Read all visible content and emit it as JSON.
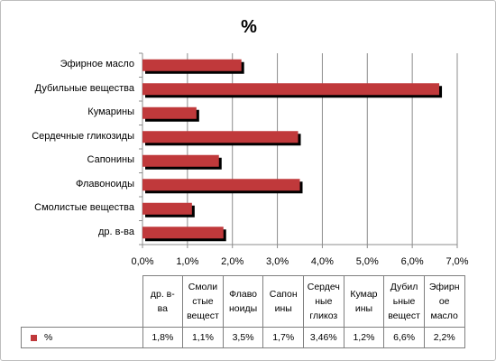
{
  "chart_data": {
    "type": "bar",
    "orientation": "horizontal",
    "title": "%",
    "categories": [
      "Эфирное масло",
      "Дубильные вещества",
      "Кумарины",
      "Сердечные гликозиды",
      "Сапонины",
      "Флавоноиды",
      "Смолистые вещества",
      "др. в-ва"
    ],
    "series": [
      {
        "name": "%",
        "values": [
          2.2,
          6.6,
          1.2,
          3.46,
          1.7,
          3.5,
          1.1,
          1.8
        ],
        "color": "#c0393b"
      }
    ],
    "xlim": [
      0,
      7
    ],
    "x_ticks": [
      "0,0%",
      "1,0%",
      "2,0%",
      "3,0%",
      "4,0%",
      "5,0%",
      "6,0%",
      "7,0%"
    ],
    "grid": true,
    "legend": "data-table",
    "table": {
      "headers": [
        "др. в-\nва",
        "Смоли\nстые\nвещест",
        "Флаво\nноиды",
        "Сапон\nины",
        "Сердеч\nные\nгликоз",
        "Кумар\nины",
        "Дубил\nьные\nвещест",
        "Эфирн\nое\nмасло"
      ],
      "series_label": "%",
      "values": [
        "1,8%",
        "1,1%",
        "3,5%",
        "1,7%",
        "3,46%",
        "1,2%",
        "6,6%",
        "2,2%"
      ]
    }
  }
}
